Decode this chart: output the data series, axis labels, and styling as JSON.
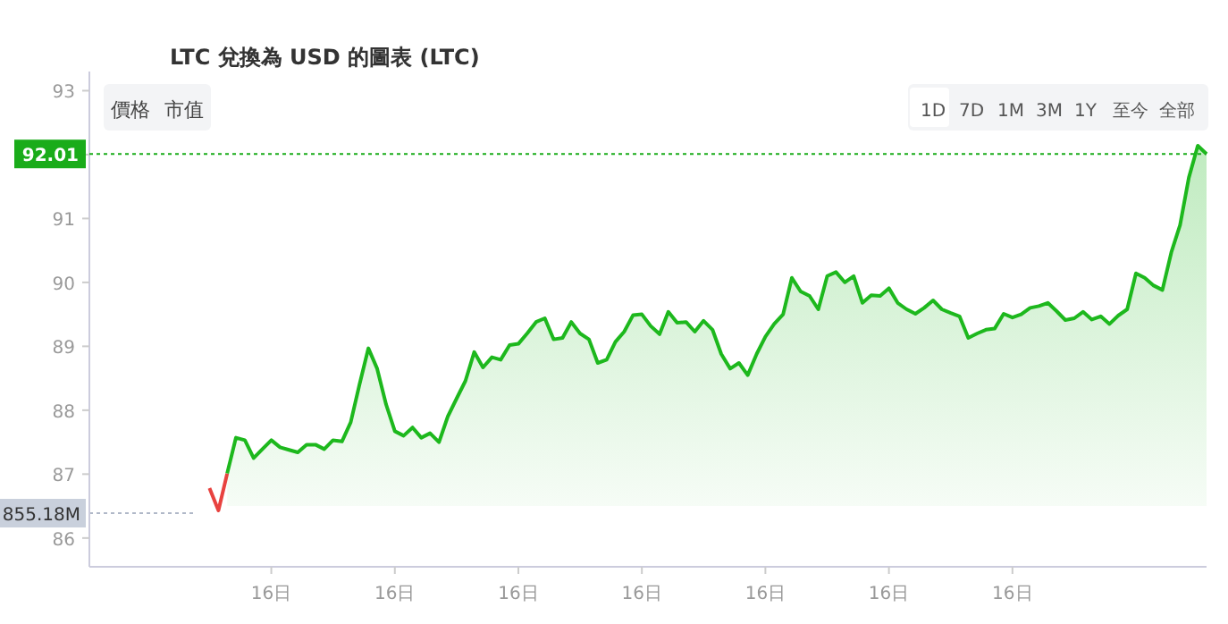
{
  "chart_data": {
    "type": "area",
    "title": "LTC 兌換為 USD 的圖表 (LTC)",
    "annotations": [
      "價格",
      "市值",
      "1D",
      "7D",
      "1M",
      "3M",
      "1Y",
      "至今",
      "全部",
      "855.18M"
    ],
    "categories": [
      null,
      null,
      null,
      null,
      null,
      null,
      null,
      null,
      null,
      null,
      null,
      null,
      null,
      null,
      null,
      null,
      null,
      null,
      null,
      "16日",
      null,
      null,
      null,
      null,
      null,
      null,
      null,
      null,
      null,
      null,
      null,
      null,
      null,
      "16日",
      null,
      null,
      null,
      null,
      null,
      null,
      null,
      null,
      null,
      null,
      null,
      null,
      null,
      "16日",
      null,
      null,
      null,
      null,
      null,
      null,
      null,
      null,
      null,
      null,
      null,
      null,
      null,
      "16日",
      null,
      null,
      null,
      null,
      null,
      null,
      null,
      null,
      null,
      null,
      null,
      null,
      null,
      "16日",
      null,
      null,
      null,
      null,
      null,
      null,
      null,
      null,
      null,
      null,
      null,
      null,
      null,
      "16日",
      null,
      null,
      null,
      null,
      null,
      null,
      null,
      null,
      null,
      null,
      null,
      null,
      null,
      "16日",
      null,
      null,
      null,
      null,
      null,
      null,
      null,
      null,
      null,
      null,
      null,
      null,
      null,
      null,
      null,
      null,
      null,
      null,
      null,
      null,
      null,
      null
    ],
    "ylim": [
      85.55,
      93.3
    ],
    "yticks": [
      86,
      87,
      88,
      89,
      90,
      91,
      {
        "value": 92,
        "label": null
      },
      93
    ],
    "ref_lines": [
      {
        "axis": "y",
        "value": 92.01,
        "label": "92.01",
        "color": "#1aac1a",
        "line_style": "dotted"
      }
    ],
    "series": [
      {
        "type": "line",
        "color": "#e8423f",
        "values": [
          null,
          null,
          null,
          null,
          null,
          null,
          null,
          null,
          null,
          null,
          null,
          null,
          86.78,
          86.43,
          87.01,
          null,
          null,
          null,
          null,
          null,
          null,
          null,
          null,
          null,
          null,
          null,
          null,
          null,
          null,
          null,
          null,
          null,
          null,
          null,
          null,
          null,
          null,
          null,
          null,
          null,
          null,
          null,
          null,
          null,
          null,
          null,
          null,
          null,
          null,
          null,
          null,
          null,
          null,
          null,
          null,
          null,
          null,
          null,
          null,
          null,
          null,
          null,
          null,
          null,
          null,
          null,
          null,
          null,
          null,
          null,
          null,
          null,
          null,
          null,
          null,
          null,
          null,
          null,
          null,
          null,
          null,
          null,
          null,
          null,
          null,
          null,
          null,
          null,
          null,
          null,
          null,
          null,
          null,
          null,
          null,
          null,
          null,
          null,
          null,
          null,
          null,
          null,
          null,
          null,
          null,
          null,
          null,
          null,
          null,
          null,
          null,
          null,
          null,
          null,
          null,
          null,
          null,
          null,
          null,
          null,
          null,
          null,
          null,
          null,
          null,
          null
        ]
      },
      {
        "color": "#1db81d",
        "values": [
          null,
          null,
          null,
          null,
          null,
          null,
          null,
          null,
          null,
          null,
          null,
          null,
          null,
          null,
          87.01,
          87.57,
          87.53,
          87.25,
          87.39,
          87.53,
          87.42,
          87.38,
          87.34,
          87.46,
          87.46,
          87.39,
          87.53,
          87.51,
          87.81,
          88.4,
          88.97,
          88.65,
          88.09,
          87.67,
          87.6,
          87.73,
          87.57,
          87.64,
          87.5,
          87.9,
          88.18,
          88.46,
          88.91,
          88.67,
          88.83,
          88.79,
          89.02,
          89.04,
          89.2,
          89.38,
          89.44,
          89.11,
          89.13,
          89.38,
          89.2,
          89.11,
          88.74,
          88.79,
          89.07,
          89.23,
          89.49,
          89.5,
          89.32,
          89.19,
          89.54,
          89.37,
          89.38,
          89.23,
          89.4,
          89.26,
          88.88,
          88.65,
          88.74,
          88.55,
          88.88,
          89.15,
          89.35,
          89.5,
          90.07,
          89.86,
          89.79,
          89.58,
          90.1,
          90.16,
          90.0,
          90.1,
          89.68,
          89.8,
          89.79,
          89.91,
          89.68,
          89.58,
          89.51,
          89.6,
          89.72,
          89.58,
          89.52,
          89.47,
          89.13,
          89.2,
          89.26,
          89.28,
          89.51,
          89.45,
          89.5,
          89.6,
          89.63,
          89.68,
          89.55,
          89.41,
          89.44,
          89.54,
          89.42,
          89.47,
          89.35,
          89.48,
          89.58,
          90.14,
          90.07,
          89.95,
          89.88,
          90.47,
          90.9,
          91.64,
          92.14,
          92.01
        ]
      }
    ]
  }
}
